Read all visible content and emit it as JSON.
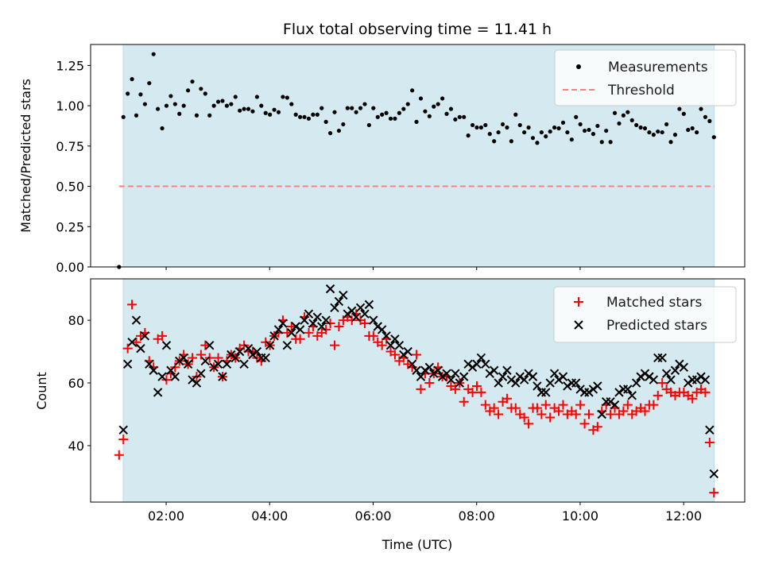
{
  "chart_data": [
    {
      "type": "scatter",
      "title": "Flux total observing time = 11.41 h",
      "xlabel": "",
      "ylabel": "Matched/Predicted stars",
      "ylim": [
        0,
        1.38
      ],
      "xlim_hours": [
        0.54,
        13.18
      ],
      "yticks": [
        "0.00",
        "0.25",
        "0.50",
        "0.75",
        "1.00",
        "1.25"
      ],
      "yticks_values": [
        0,
        0.25,
        0.5,
        0.75,
        1.0,
        1.25
      ],
      "xticks_values": [
        2,
        4,
        6,
        8,
        10,
        12
      ],
      "shaded_span_hours": [
        1.17,
        12.59
      ],
      "shade_color": "#d4eaf0",
      "t_start_hours": 1.09,
      "t_step_hours": 0.0833,
      "legend": {
        "position": "top-right",
        "entries": [
          "Measurements",
          "Threshold"
        ]
      },
      "threshold": {
        "value": 0.5,
        "color": "#ff7f7f"
      },
      "series": [
        {
          "name": "Measurements",
          "color": "#000000",
          "values": [
            0,
            0.93,
            1.075,
            1.165,
            0.94,
            1.07,
            1.01,
            1.14,
            1.32,
            0.98,
            0.86,
            1.0,
            1.06,
            1.01,
            0.95,
            1.0,
            1.095,
            1.15,
            0.94,
            1.105,
            1.075,
            0.94,
            1.0,
            1.025,
            1.03,
            1.0,
            1.01,
            1.055,
            0.97,
            0.98,
            0.98,
            0.965,
            1.055,
            1.0,
            0.955,
            0.945,
            0.975,
            0.96,
            1.055,
            1.05,
            1.01,
            0.945,
            0.93,
            0.93,
            0.92,
            0.945,
            0.945,
            0.985,
            0.9,
            0.83,
            0.96,
            0.845,
            0.885,
            0.985,
            0.985,
            0.96,
            0.985,
            1.01,
            0.88,
            0.985,
            0.93,
            0.945,
            0.955,
            0.92,
            0.92,
            0.955,
            0.98,
            1.01,
            1.095,
            0.9,
            1.045,
            0.965,
            0.935,
            0.995,
            1.01,
            1.045,
            0.95,
            0.98,
            0.915,
            0.93,
            0.93,
            0.815,
            0.88,
            0.865,
            0.865,
            0.88,
            0.825,
            0.78,
            0.835,
            0.885,
            0.865,
            0.78,
            0.945,
            0.88,
            0.835,
            0.865,
            0.8,
            0.77,
            0.835,
            0.81,
            0.84,
            0.865,
            0.86,
            0.895,
            0.835,
            0.79,
            0.93,
            0.885,
            0.845,
            0.85,
            0.825,
            0.875,
            0.775,
            0.845,
            0.775,
            0.955,
            0.89,
            0.94,
            0.96,
            0.91,
            0.88,
            0.865,
            0.86,
            0.835,
            0.82,
            0.84,
            0.835,
            0.885,
            0.775,
            0.82,
            0.98,
            0.95,
            0.85,
            0.86,
            0.835,
            0.98,
            0.93,
            0.905,
            0.805
          ]
        }
      ]
    },
    {
      "type": "scatter",
      "title": "",
      "xlabel": "Time (UTC)",
      "ylabel": "Count",
      "ylim": [
        22,
        93.2
      ],
      "xlim_hours": [
        0.54,
        13.18
      ],
      "yticks": [
        "40",
        "60",
        "80"
      ],
      "yticks_values": [
        40,
        60,
        80
      ],
      "xticks": [
        "02:00",
        "04:00",
        "06:00",
        "08:00",
        "10:00",
        "12:00"
      ],
      "xticks_values": [
        2,
        4,
        6,
        8,
        10,
        12
      ],
      "shaded_span_hours": [
        1.17,
        12.59
      ],
      "t_start_hours": 1.09,
      "t_step_hours": 0.0833,
      "legend": {
        "position": "top-right",
        "entries": [
          "Matched stars",
          "Predicted stars"
        ]
      },
      "series": [
        {
          "name": "Matched stars",
          "marker": "+",
          "color": "#ff0000",
          "values": [
            37,
            42,
            71,
            85,
            73,
            75,
            76,
            67,
            65,
            74,
            75,
            61,
            63,
            65,
            67,
            69,
            66,
            68,
            62,
            69,
            72,
            68,
            65,
            68,
            62,
            67,
            69,
            68,
            71,
            72,
            70,
            70,
            68,
            67,
            73,
            72,
            75,
            76,
            80,
            76,
            78,
            74,
            74,
            81,
            76,
            78,
            75,
            76,
            77,
            79,
            72,
            78,
            80,
            81,
            80,
            82,
            80,
            79,
            75,
            75,
            73,
            72,
            74,
            70,
            69,
            67,
            68,
            66,
            65,
            69,
            58,
            63,
            60,
            63,
            65,
            62,
            62,
            59,
            58,
            60,
            54,
            58,
            57,
            59,
            57,
            53,
            51,
            52,
            50,
            54,
            55,
            52,
            52,
            50,
            49,
            47,
            52,
            52,
            50,
            53,
            49,
            52,
            51,
            53,
            50,
            51,
            50,
            53,
            47,
            50,
            45,
            46,
            51,
            53,
            50,
            52,
            50,
            51,
            53,
            50,
            51,
            52,
            51,
            53,
            53,
            56,
            60,
            58,
            57,
            56,
            57,
            57,
            56,
            55,
            57,
            58,
            57,
            41,
            25
          ]
        },
        {
          "name": "Predicted stars",
          "marker": "x",
          "color": "#000000",
          "values": [
            null,
            45,
            66,
            73,
            80,
            71,
            75,
            66,
            64,
            57,
            62,
            72,
            64,
            62,
            67,
            68,
            66,
            61,
            60,
            63,
            67,
            72,
            65,
            66,
            62,
            66,
            69,
            68,
            70,
            66,
            71,
            69,
            70,
            68,
            68,
            72,
            75,
            77,
            79,
            72,
            76,
            78,
            77,
            80,
            82,
            79,
            81,
            78,
            80,
            90,
            84,
            86,
            88,
            82,
            83,
            81,
            84,
            82,
            85,
            80,
            78,
            77,
            75,
            72,
            74,
            72,
            69,
            70,
            66,
            64,
            62,
            64,
            65,
            63,
            64,
            62,
            63,
            61,
            63,
            60,
            62,
            66,
            65,
            66,
            68,
            66,
            63,
            64,
            60,
            62,
            64,
            61,
            60,
            62,
            61,
            63,
            62,
            59,
            57,
            57,
            60,
            63,
            61,
            62,
            59,
            60,
            60,
            58,
            57,
            57,
            58,
            59,
            50,
            54,
            54,
            53,
            57,
            58,
            58,
            56,
            60,
            62,
            63,
            62,
            61,
            68,
            68,
            63,
            61,
            64,
            66,
            65,
            60,
            61,
            61,
            62,
            61,
            45,
            31
          ]
        }
      ]
    }
  ]
}
